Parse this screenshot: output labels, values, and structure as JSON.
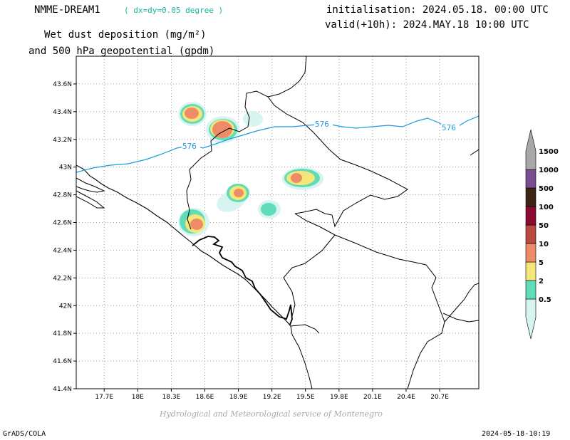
{
  "header": {
    "model": "NMME-DREAM1",
    "grid_resolution": "( dx=dy=0.05 degree )",
    "initialisation": "initialisation: 2024.05.18. 00:00 UTC",
    "valid": "valid(+10h): 2024.MAY.18 10:00 UTC",
    "title_line1": "Wet dust deposition (mg/m²)",
    "title_line2": "and 500 hPa geopotential (gpdm)"
  },
  "footer": {
    "credit": "Hydrological and Meteorological service of Montenegro",
    "software": "GrADS/COLA",
    "timestamp": "2024-05-18-10:19"
  },
  "map": {
    "lon_range": [
      17.45,
      21.05
    ],
    "lat_range": [
      41.4,
      43.8
    ],
    "x_ticks": [
      "17.7E",
      "18E",
      "18.3E",
      "18.6E",
      "18.9E",
      "19.2E",
      "19.5E",
      "19.8E",
      "20.1E",
      "20.4E",
      "20.7E"
    ],
    "y_ticks": [
      "43.6N",
      "43.4N",
      "43.2N",
      "43N",
      "42.8N",
      "42.6N",
      "42.4N",
      "42.2N",
      "42N",
      "41.8N",
      "41.6N",
      "41.4N"
    ],
    "contour_label": "576",
    "contour_color": "#1b9be0"
  },
  "colorbar": {
    "labels": [
      "0.5",
      "2",
      "5",
      "10",
      "50",
      "100",
      "500",
      "1000",
      "1500"
    ],
    "colors": [
      "#d8f4f0",
      "#5fdcb8",
      "#f5e67a",
      "#ee8c68",
      "#b84a42",
      "#8a0a32",
      "#3e2414",
      "#7a4e8e",
      "#a8a8a8"
    ]
  }
}
